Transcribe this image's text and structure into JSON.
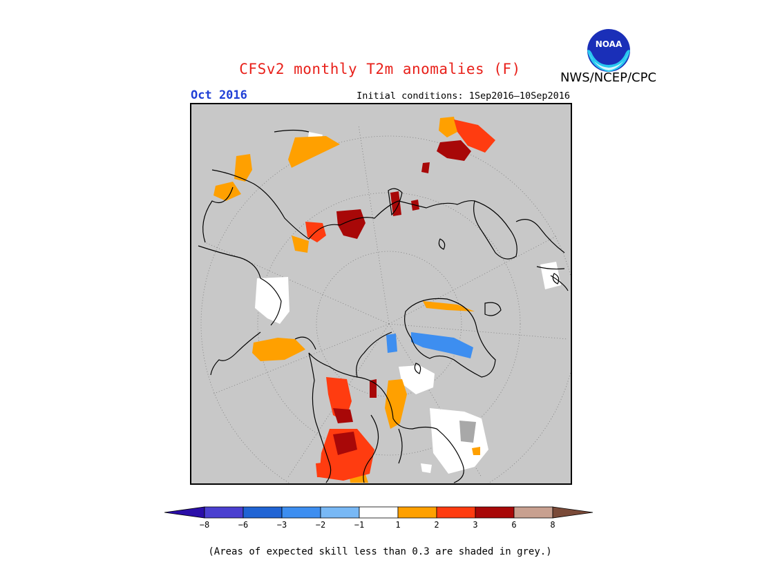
{
  "header": {
    "title": "CFSv2 monthly T2m anomalies (F)",
    "issuer": "NWS/NCEP/CPC",
    "valid_month": "Oct 2016",
    "initial_conditions": "Initial conditions: 1Sep2016–10Sep2016"
  },
  "logo": {
    "text": "NOAA",
    "icon": "noaa-logo"
  },
  "map": {
    "projection": "north polar stereographic",
    "background_color": "#c8c8c8",
    "grid": "dotted latitude/longitude lines"
  },
  "legend": {
    "ticks": [
      "−8",
      "−6",
      "−3",
      "−2",
      "−1",
      "1",
      "2",
      "3",
      "6",
      "8"
    ],
    "colors": [
      "#2a0ea8",
      "#4a3fd0",
      "#2064d4",
      "#3d8ef0",
      "#78b8f5",
      "#ffffff",
      "#ffa000",
      "#ff3c10",
      "#a80808",
      "#c8a090",
      "#7a4a38"
    ]
  },
  "footnote": "(Areas of expected skill less than 0.3 are shaded in grey.)"
}
